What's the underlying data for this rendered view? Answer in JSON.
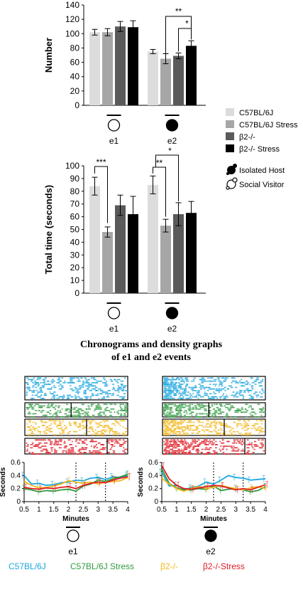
{
  "colors": {
    "c57": "#dcdcdc",
    "c57stress": "#a6a6a6",
    "b2": "#5a5a5a",
    "b2stress": "#000000",
    "line_c57": "#1ba6df",
    "line_c57stress": "#2e9b3f",
    "line_b2": "#f2b61b",
    "line_b2stress": "#e01b24"
  },
  "legend": {
    "c57": "C57BL/6J",
    "c57stress": "C57BL/6J Stress",
    "b2": "β2-/-",
    "b2stress": "β2-/- Stress",
    "isolated_host": "Isolated Host",
    "social_visitor": "Social Visitor"
  },
  "section_title": {
    "line1": "Chronograms and density graphs",
    "line2": "of e1 and e2 events"
  },
  "bottom_legend": {
    "c57": "C57BL/6J",
    "c57stress": "C57BL/6J Stress",
    "b2": "β2-/-",
    "b2stress": "β2-/-Stress"
  },
  "chart_data": [
    {
      "type": "bar",
      "ylabel": "Number",
      "ylim": [
        0,
        140
      ],
      "yticks": [
        "0",
        "20",
        "40",
        "60",
        "80",
        "100",
        "120",
        "140"
      ],
      "categories": [
        "e1",
        "e2"
      ],
      "series": [
        {
          "name": "C57BL/6J",
          "values": [
            102,
            75
          ],
          "err": [
            4,
            3
          ]
        },
        {
          "name": "C57BL/6J Stress",
          "values": [
            102,
            65
          ],
          "err": [
            5,
            7
          ]
        },
        {
          "name": "β2-/-",
          "values": [
            110,
            69
          ],
          "err": [
            7,
            4
          ]
        },
        {
          "name": "β2-/- Stress",
          "values": [
            109,
            83
          ],
          "err": [
            9,
            7
          ]
        }
      ],
      "annotations": [
        "**",
        "*"
      ]
    },
    {
      "type": "bar",
      "ylabel": "Total time (seconds)",
      "ylim": [
        0,
        100
      ],
      "yticks": [
        "0",
        "10",
        "20",
        "30",
        "40",
        "50",
        "60",
        "70",
        "80",
        "90",
        "100"
      ],
      "categories": [
        "e1",
        "e2"
      ],
      "series": [
        {
          "name": "C57BL/6J",
          "values": [
            84,
            85
          ],
          "err": [
            7,
            7
          ]
        },
        {
          "name": "C57BL/6J Stress",
          "values": [
            48,
            53
          ],
          "err": [
            4,
            5
          ]
        },
        {
          "name": "β2-/-",
          "values": [
            69,
            62
          ],
          "err": [
            8,
            9
          ]
        },
        {
          "name": "β2-/- Stress",
          "values": [
            62,
            63
          ],
          "err": [
            14,
            9
          ]
        }
      ],
      "annotations": [
        "***",
        "**",
        "*"
      ]
    },
    {
      "type": "line",
      "title": "e1",
      "xlabel": "Minutes",
      "ylabel": "Seconds",
      "xlim": [
        0.5,
        4
      ],
      "ylim": [
        0,
        0.6
      ],
      "x": [
        0.5,
        0.75,
        1,
        1.25,
        1.5,
        1.75,
        2,
        2.25,
        2.5,
        2.75,
        3,
        3.25,
        3.5,
        3.75,
        4
      ],
      "xticks": [
        "0.5",
        "1",
        "1.5",
        "2",
        "2.5",
        "3",
        "3.5",
        "4"
      ],
      "yticks": [
        "0",
        "0.2",
        "0.4",
        "0.6"
      ],
      "vlines": [
        2.25,
        3.25
      ],
      "series": [
        {
          "name": "C57BL/6J",
          "values": [
            0.4,
            0.27,
            0.28,
            0.25,
            0.26,
            0.29,
            0.3,
            0.33,
            0.32,
            0.36,
            0.37,
            0.34,
            0.38,
            0.37,
            0.4
          ]
        },
        {
          "name": "C57BL/6J Stress",
          "values": [
            0.2,
            0.18,
            0.15,
            0.17,
            0.16,
            0.18,
            0.19,
            0.16,
            0.24,
            0.27,
            0.33,
            0.31,
            0.35,
            0.38,
            0.42
          ]
        },
        {
          "name": "β2-/-",
          "values": [
            0.31,
            0.25,
            0.21,
            0.22,
            0.24,
            0.27,
            0.32,
            0.3,
            0.28,
            0.3,
            0.27,
            0.3,
            0.31,
            0.32,
            0.37
          ]
        },
        {
          "name": "β2-/-Stress",
          "values": [
            0.22,
            0.2,
            0.19,
            0.21,
            0.2,
            0.22,
            0.23,
            0.2,
            0.25,
            0.28,
            0.3,
            0.29,
            0.33,
            0.36,
            0.38
          ]
        }
      ]
    },
    {
      "type": "line",
      "title": "e2",
      "xlabel": "Minutes",
      "ylabel": "Seconds",
      "xlim": [
        0.5,
        4
      ],
      "ylim": [
        0,
        0.6
      ],
      "x": [
        0.5,
        0.75,
        1,
        1.25,
        1.5,
        1.75,
        2,
        2.25,
        2.5,
        2.75,
        3,
        3.25,
        3.5,
        3.75,
        4
      ],
      "xticks": [
        "0.5",
        "1",
        "1.5",
        "2",
        "2.5",
        "3",
        "3.5",
        "4"
      ],
      "yticks": [
        "0",
        "0.2",
        "0.4",
        "0.6"
      ],
      "vlines": [
        2.25,
        3.25
      ],
      "series": [
        {
          "name": "C57BL/6J",
          "values": [
            0.45,
            0.24,
            0.25,
            0.19,
            0.21,
            0.24,
            0.3,
            0.27,
            0.33,
            0.4,
            0.37,
            0.36,
            0.33,
            0.34,
            0.35
          ]
        },
        {
          "name": "C57BL/6J Stress",
          "values": [
            0.5,
            0.28,
            0.21,
            0.18,
            0.18,
            0.2,
            0.19,
            0.24,
            0.17,
            0.19,
            0.2,
            0.18,
            0.15,
            0.17,
            0.23
          ]
        },
        {
          "name": "β2-/-",
          "values": [
            0.36,
            0.27,
            0.2,
            0.16,
            0.2,
            0.23,
            0.2,
            0.22,
            0.25,
            0.22,
            0.2,
            0.18,
            0.21,
            0.23,
            0.2
          ]
        },
        {
          "name": "β2-/-Stress",
          "values": [
            0.55,
            0.35,
            0.25,
            0.2,
            0.19,
            0.21,
            0.23,
            0.25,
            0.24,
            0.21,
            0.18,
            0.2,
            0.18,
            0.22,
            0.26
          ]
        }
      ]
    }
  ]
}
